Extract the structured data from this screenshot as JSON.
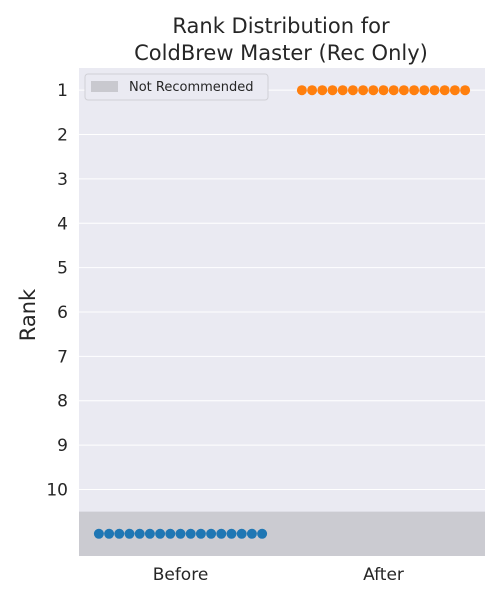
{
  "chart_data": {
    "type": "scatter",
    "title_lines": [
      "Rank Distribution for",
      "ColdBrew Master (Rec Only)"
    ],
    "xlabel": "",
    "ylabel": "Rank",
    "categories": [
      "Before",
      "After"
    ],
    "yticks": [
      1,
      2,
      3,
      4,
      5,
      6,
      7,
      8,
      9,
      10
    ],
    "ylim": [
      0.5,
      11.5
    ],
    "y_inverted": true,
    "grid": true,
    "legend": {
      "position": "top-left",
      "entries": [
        "Not Recommended"
      ]
    },
    "not_recommended_band": {
      "label": "Not Recommended",
      "from": 10.5,
      "to": 11.5,
      "color": "#cbcbd1"
    },
    "series": [
      {
        "category": "Before",
        "rank_label": "Not Recommended",
        "y": 11,
        "count": 17,
        "color": "#1f77b4"
      },
      {
        "category": "After",
        "rank_label": "1",
        "y": 1,
        "count": 17,
        "color": "#ff7f0e"
      }
    ],
    "colors": {
      "plot_bg": "#eaeaf2",
      "grid": "#ffffff",
      "legend_patch": "#c9c9cf"
    }
  }
}
